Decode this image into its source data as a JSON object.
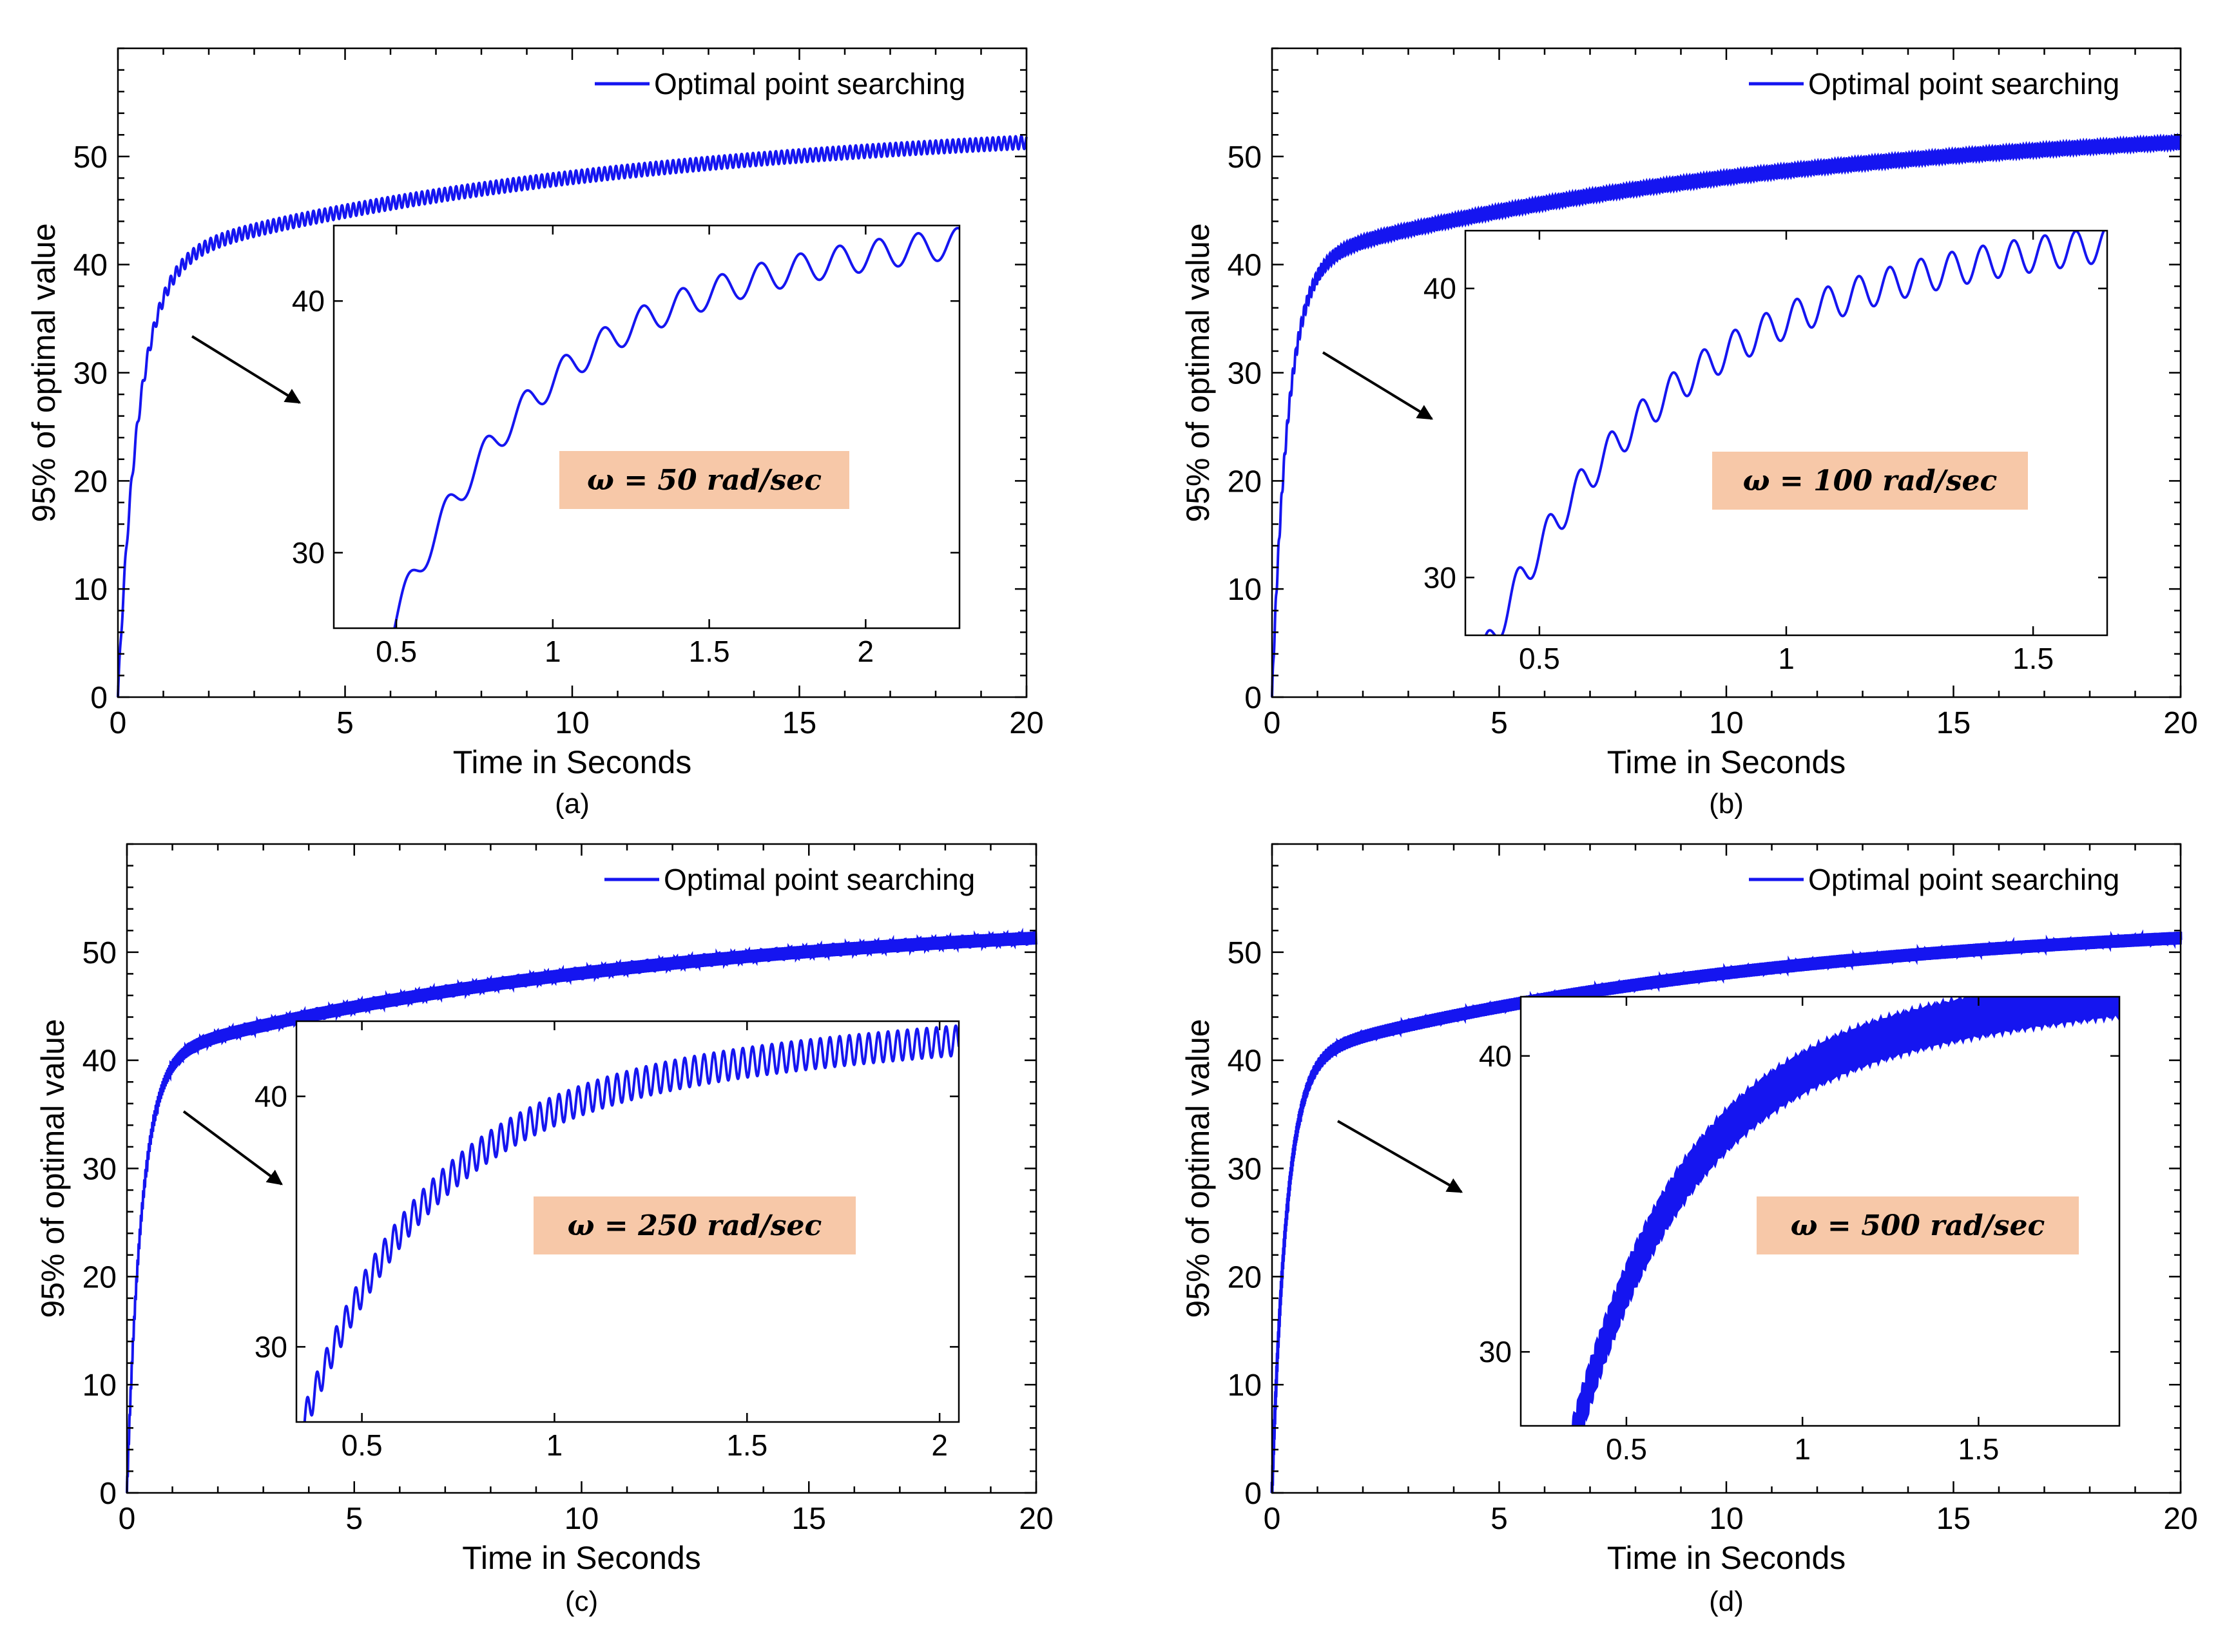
{
  "figure": {
    "panel_labels": [
      "(a)",
      "(b)",
      "(c)",
      "(d)"
    ],
    "colors": {
      "series": "#1515f0",
      "annotation_bg": "#f7c8a8",
      "axes": "#000000",
      "arrow": "#000000"
    }
  },
  "chart_data": [
    {
      "type": "line",
      "panel": "(a)",
      "xlabel": "Time in Seconds",
      "ylabel": "95% of optimal value",
      "xlim": [
        0,
        20
      ],
      "ylim": [
        0,
        60
      ],
      "xticks": [
        0,
        5,
        10,
        15,
        20
      ],
      "yticks": [
        0,
        10,
        20,
        30,
        40,
        50
      ],
      "legend": {
        "label": "Optimal point searching",
        "position": "top-right"
      },
      "series": [
        {
          "name": "Optimal point searching",
          "model": {
            "final": 53.5,
            "rise": 40,
            "rise_tc": 0.45,
            "growth": 13.5,
            "growth_tc": 11
          },
          "ripple": {
            "frequency_rad_s": 50,
            "amplitude": 0.6
          }
        }
      ],
      "inset": {
        "xlim": [
          0.3,
          2.3
        ],
        "ylim": [
          27,
          43
        ],
        "xticks": [
          0.5,
          1,
          1.5,
          2
        ],
        "yticks": [
          30,
          40
        ],
        "annotation": "ω = 50 rad/sec"
      }
    },
    {
      "type": "line",
      "panel": "(b)",
      "xlabel": "Time in Seconds",
      "ylabel": "95% of optimal value",
      "xlim": [
        0,
        20
      ],
      "ylim": [
        0,
        60
      ],
      "xticks": [
        0,
        5,
        10,
        15,
        20
      ],
      "yticks": [
        0,
        10,
        20,
        30,
        40,
        50
      ],
      "legend": {
        "label": "Optimal point searching",
        "position": "top-right"
      },
      "series": [
        {
          "name": "Optimal point searching",
          "model": {
            "final": 53.5,
            "rise": 40,
            "rise_tc": 0.35,
            "growth": 13.5,
            "growth_tc": 11
          },
          "ripple": {
            "frequency_rad_s": 100,
            "amplitude": 0.6
          }
        }
      ],
      "inset": {
        "xlim": [
          0.35,
          1.65
        ],
        "ylim": [
          28,
          42
        ],
        "xticks": [
          0.5,
          1,
          1.5
        ],
        "yticks": [
          30,
          40
        ],
        "annotation": "ω = 100 rad/sec"
      }
    },
    {
      "type": "line",
      "panel": "(c)",
      "xlabel": "Time in Seconds",
      "ylabel": "95% of optimal value",
      "xlim": [
        0,
        20
      ],
      "ylim": [
        0,
        60
      ],
      "xticks": [
        0,
        5,
        10,
        15,
        20
      ],
      "yticks": [
        0,
        10,
        20,
        30,
        40,
        50
      ],
      "legend": {
        "label": "Optimal point searching",
        "position": "top-right"
      },
      "series": [
        {
          "name": "Optimal point searching",
          "model": {
            "final": 53.5,
            "rise": 40,
            "rise_tc": 0.32,
            "growth": 13.5,
            "growth_tc": 11
          },
          "ripple": {
            "frequency_rad_s": 250,
            "amplitude": 0.6
          }
        }
      ],
      "inset": {
        "xlim": [
          0.33,
          2.05
        ],
        "ylim": [
          27,
          43
        ],
        "xticks": [
          0.5,
          1,
          1.5,
          2
        ],
        "yticks": [
          30,
          40
        ],
        "annotation": "ω = 250 rad/sec"
      }
    },
    {
      "type": "line",
      "panel": "(d)",
      "xlabel": "Time in Seconds",
      "ylabel": "95% of optimal value",
      "xlim": [
        0,
        20
      ],
      "ylim": [
        0,
        60
      ],
      "xticks": [
        0,
        5,
        10,
        15,
        20
      ],
      "yticks": [
        0,
        10,
        20,
        30,
        40,
        50
      ],
      "legend": {
        "label": "Optimal point searching",
        "position": "top-right"
      },
      "series": [
        {
          "name": "Optimal point searching",
          "model": {
            "final": 53.5,
            "rise": 40,
            "rise_tc": 0.32,
            "growth": 13.5,
            "growth_tc": 11
          },
          "ripple": {
            "frequency_rad_s": 500,
            "amplitude": 0.6
          }
        }
      ],
      "inset": {
        "xlim": [
          0.2,
          1.9
        ],
        "ylim": [
          27.5,
          42
        ],
        "xticks": [
          0.5,
          1,
          1.5
        ],
        "yticks": [
          30,
          40
        ],
        "annotation": "ω = 500 rad/sec"
      }
    }
  ]
}
